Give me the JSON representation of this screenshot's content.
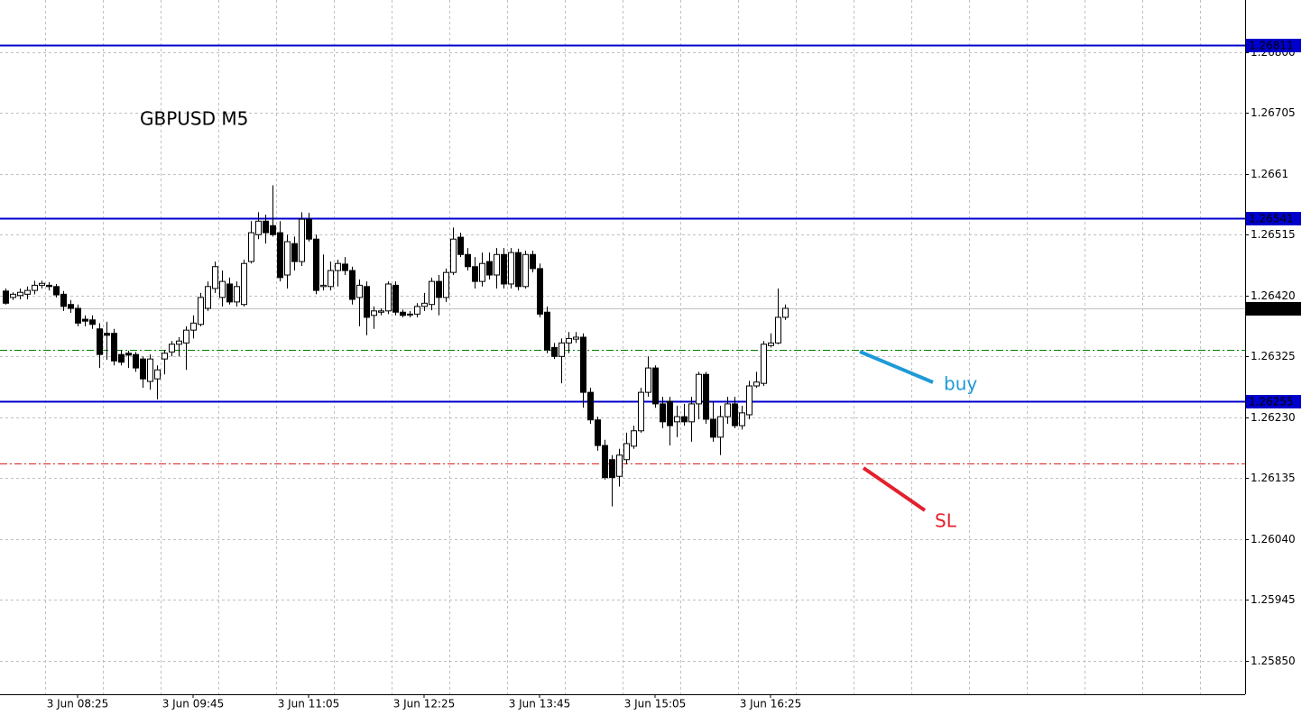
{
  "chart_data": {
    "type": "candlestick",
    "title": "GBPUSD M5",
    "categories": [
      null,
      null,
      null,
      null,
      null,
      null,
      null,
      null,
      null,
      null,
      "3 Jun 08:25",
      null,
      null,
      null,
      null,
      null,
      null,
      null,
      null,
      null,
      null,
      null,
      null,
      null,
      null,
      null,
      "3 Jun 09:45",
      null,
      null,
      null,
      null,
      null,
      null,
      null,
      null,
      null,
      null,
      null,
      null,
      null,
      null,
      null,
      "3 Jun 11:05",
      null,
      null,
      null,
      null,
      null,
      null,
      null,
      null,
      null,
      null,
      null,
      null,
      null,
      null,
      null,
      "3 Jun 12:25",
      null,
      null,
      null,
      null,
      null,
      null,
      null,
      null,
      null,
      null,
      null,
      null,
      null,
      null,
      null,
      "3 Jun 13:45",
      null,
      null,
      null,
      null,
      null,
      null,
      null,
      null,
      null,
      null,
      null,
      null,
      null,
      null,
      null,
      "3 Jun 15:05",
      null,
      null,
      null,
      null,
      null,
      null,
      null,
      null,
      null,
      null,
      null,
      null,
      null,
      null,
      null,
      "3 Jun 16:25",
      null,
      null
    ],
    "open": [
      1.26427,
      1.26417,
      1.2642,
      1.26422,
      1.26428,
      1.26436,
      1.26436,
      1.26434,
      1.26422,
      1.26406,
      1.264,
      1.26383,
      1.26382,
      1.26368,
      1.26361,
      1.26361,
      1.26328,
      1.2633,
      1.26328,
      1.26321,
      1.26286,
      1.2629,
      1.26321,
      1.26332,
      1.26344,
      1.26346,
      1.26366,
      1.26375,
      1.264,
      1.26431,
      1.26417,
      1.26438,
      1.2641,
      1.26406,
      1.26473,
      1.26515,
      1.26536,
      1.26529,
      1.26518,
      1.26452,
      1.26501,
      1.26473,
      1.26539,
      1.26508,
      1.26434,
      1.26434,
      1.26459,
      1.26469,
      1.26459,
      1.26417,
      1.26434,
      1.26389,
      1.26394,
      1.26396,
      1.26436,
      1.26394,
      1.26391,
      1.26391,
      1.26403,
      1.26406,
      1.26442,
      1.26417,
      1.26456,
      1.26511,
      1.26484,
      1.26465,
      1.26442,
      1.26473,
      1.26452,
      1.26484,
      1.26438,
      1.26487,
      1.26434,
      1.26484,
      1.26462,
      1.26394,
      1.26339,
      1.26325,
      1.26346,
      1.26352,
      1.26355,
      1.26269,
      1.26226,
      1.26186,
      1.26164,
      1.26138,
      1.26164,
      1.26185,
      1.26209,
      1.26269,
      1.26307,
      1.26251,
      1.26255,
      1.26223,
      1.26231,
      1.26223,
      1.26251,
      1.26297,
      1.26227,
      1.26199,
      1.26231,
      1.26251,
      1.26217,
      1.26234,
      1.26279,
      1.26283,
      1.26342,
      1.26346,
      1.26386
    ],
    "high": [
      1.26431,
      1.26425,
      1.26431,
      1.26434,
      1.26443,
      1.26443,
      1.26441,
      1.26438,
      1.26427,
      1.26413,
      1.26406,
      1.26389,
      1.26389,
      1.26377,
      1.26379,
      1.26368,
      1.26335,
      1.26334,
      1.26332,
      1.26325,
      1.26328,
      1.26311,
      1.26335,
      1.26349,
      1.26355,
      1.26372,
      1.26389,
      1.26424,
      1.26442,
      1.26473,
      1.26459,
      1.26448,
      1.26442,
      1.26476,
      1.26536,
      1.2655,
      1.26546,
      1.26592,
      1.26536,
      1.26515,
      1.26512,
      1.2655,
      1.26549,
      1.26515,
      1.26484,
      1.26473,
      1.26476,
      1.2648,
      1.26465,
      1.26445,
      1.26442,
      1.26403,
      1.264,
      1.26442,
      1.26442,
      1.26398,
      1.26396,
      1.26408,
      1.26424,
      1.26448,
      1.26452,
      1.26462,
      1.26526,
      1.26518,
      1.26494,
      1.2648,
      1.26487,
      1.26487,
      1.26494,
      1.26494,
      1.26494,
      1.26493,
      1.2649,
      1.2649,
      1.2647,
      1.26403,
      1.26346,
      1.26353,
      1.26363,
      1.26363,
      1.26361,
      1.26276,
      1.26231,
      1.26195,
      1.26171,
      1.26181,
      1.26206,
      1.26217,
      1.26276,
      1.26325,
      1.26311,
      1.26262,
      1.26262,
      1.26248,
      1.26251,
      1.26262,
      1.26301,
      1.26301,
      1.26255,
      1.26248,
      1.26262,
      1.26262,
      1.26248,
      1.26287,
      1.26301,
      1.26349,
      1.26361,
      1.26431,
      1.26406
    ],
    "low": [
      1.26406,
      1.26413,
      1.26414,
      1.26414,
      1.26422,
      1.26431,
      1.26428,
      1.26417,
      1.26396,
      1.26393,
      1.26372,
      1.26372,
      1.26368,
      1.26307,
      1.2632,
      1.26311,
      1.26311,
      1.26307,
      1.26301,
      1.26276,
      1.26273,
      1.26258,
      1.26297,
      1.26325,
      1.26325,
      1.26304,
      1.26353,
      1.26372,
      1.26396,
      1.26424,
      1.26403,
      1.26406,
      1.26403,
      1.26403,
      1.2647,
      1.26508,
      1.26501,
      1.26512,
      1.26442,
      1.26431,
      1.26459,
      1.26466,
      1.26504,
      1.26422,
      1.26428,
      1.26428,
      1.26434,
      1.26452,
      1.26406,
      1.26372,
      1.26358,
      1.26368,
      1.26389,
      1.26391,
      1.26389,
      1.26386,
      1.26386,
      1.26386,
      1.26396,
      1.26397,
      1.26389,
      1.2641,
      1.26452,
      1.2648,
      1.26459,
      1.26431,
      1.26434,
      1.26445,
      1.26431,
      1.26431,
      1.26431,
      1.26428,
      1.26431,
      1.26456,
      1.26386,
      1.2633,
      1.26321,
      1.26283,
      1.2633,
      1.26346,
      1.26245,
      1.2622,
      1.26178,
      1.26133,
      1.26091,
      1.26122,
      1.26157,
      1.26181,
      1.26206,
      1.26262,
      1.26245,
      1.26213,
      1.26186,
      1.26199,
      1.26217,
      1.26192,
      1.26227,
      1.2622,
      1.26192,
      1.26171,
      1.2622,
      1.26213,
      1.26211,
      1.26227,
      1.26276,
      1.26279,
      1.26339,
      1.26344,
      1.26382
    ],
    "close": [
      1.26408,
      1.26422,
      1.26425,
      1.26428,
      1.26436,
      1.26439,
      1.26434,
      1.26421,
      1.26403,
      1.264,
      1.26377,
      1.2638,
      1.26375,
      1.26328,
      1.26358,
      1.26318,
      1.26316,
      1.26327,
      1.26307,
      1.2629,
      1.26321,
      1.26304,
      1.2633,
      1.26344,
      1.26349,
      1.26366,
      1.26377,
      1.26417,
      1.26434,
      1.26465,
      1.26442,
      1.2641,
      1.26434,
      1.2647,
      1.26518,
      1.26536,
      1.26518,
      1.26515,
      1.26448,
      1.26504,
      1.26473,
      1.26539,
      1.26508,
      1.26428,
      1.26436,
      1.26459,
      1.2647,
      1.26459,
      1.26414,
      1.26436,
      1.26386,
      1.26396,
      1.26396,
      1.26438,
      1.26394,
      1.26389,
      1.2639,
      1.26403,
      1.26408,
      1.26442,
      1.26417,
      1.26456,
      1.26508,
      1.26484,
      1.26465,
      1.26442,
      1.2647,
      1.26452,
      1.26484,
      1.26438,
      1.26487,
      1.26434,
      1.26484,
      1.26462,
      1.26391,
      1.26335,
      1.26325,
      1.26346,
      1.26353,
      1.26355,
      1.26269,
      1.26226,
      1.26186,
      1.26136,
      1.26136,
      1.26171,
      1.26189,
      1.26209,
      1.26269,
      1.26307,
      1.26251,
      1.26223,
      1.26217,
      1.26231,
      1.26223,
      1.26251,
      1.26297,
      1.26227,
      1.26199,
      1.26231,
      1.26251,
      1.26217,
      1.26237,
      1.26279,
      1.26285,
      1.26344,
      1.26346,
      1.26386,
      1.264
    ],
    "up_color": "#ffffff",
    "down_color": "#000000",
    "ylim": [
      1.25798,
      1.26881
    ],
    "yticks": [
      {
        "value": 1.268,
        "label": "1.26800"
      },
      1.26705,
      1.2661,
      1.26515,
      {
        "value": 1.2642,
        "label": "1.26420"
      },
      1.26325,
      {
        "value": 1.2623,
        "label": "1.26230"
      },
      1.26135,
      {
        "value": 1.2604,
        "label": "1.26040"
      },
      1.25945,
      {
        "value": 1.2585,
        "label": "1.25850"
      }
    ],
    "grid": true,
    "hlines": [
      {
        "value": 1.26811,
        "color": "#0000cc",
        "style": "solid"
      },
      {
        "value": 1.26541,
        "color": "#0000cc",
        "style": "solid"
      },
      {
        "value": 1.26255,
        "color": "#0000cc",
        "style": "solid"
      },
      {
        "value": {
          "value": 1.264,
          "label": "1.26400"
        },
        "color": "#000000",
        "style": "price"
      },
      {
        "value": 1.26335,
        "color": "#008000",
        "style": "dashdot"
      },
      {
        "value": 1.26158,
        "color": "#e02020",
        "style": "dashdot"
      }
    ],
    "annotations": [
      {
        "text": "buy",
        "color": "#1f9ad8"
      },
      {
        "text": "SL",
        "color": "#e3202c"
      }
    ]
  }
}
